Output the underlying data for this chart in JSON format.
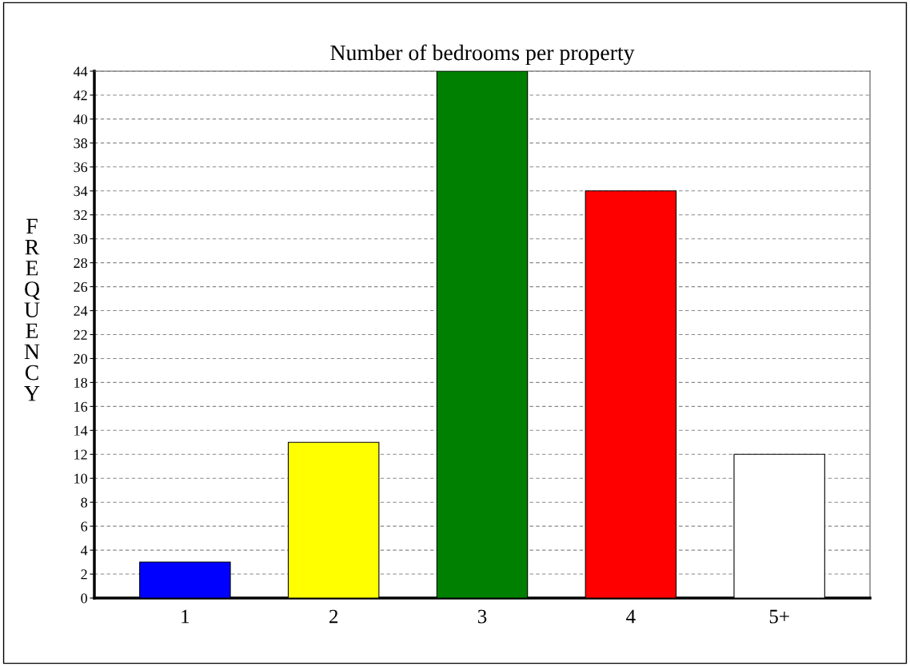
{
  "chart_data": {
    "type": "bar",
    "title": "Number of bedrooms per property",
    "ylabel": "FREQUENCY",
    "categories": [
      "1",
      "2",
      "3",
      "4",
      "5+"
    ],
    "values": [
      3,
      13,
      44,
      34,
      12
    ],
    "colors": [
      "#0000ff",
      "#ffff00",
      "#008000",
      "#ff0000",
      "#ffffff"
    ],
    "ylim": [
      0,
      44
    ],
    "yticks": [
      0,
      2,
      4,
      6,
      8,
      10,
      12,
      14,
      16,
      18,
      20,
      22,
      24,
      26,
      28,
      30,
      32,
      34,
      36,
      38,
      40,
      42,
      44
    ],
    "grid": "y",
    "legend": false
  }
}
